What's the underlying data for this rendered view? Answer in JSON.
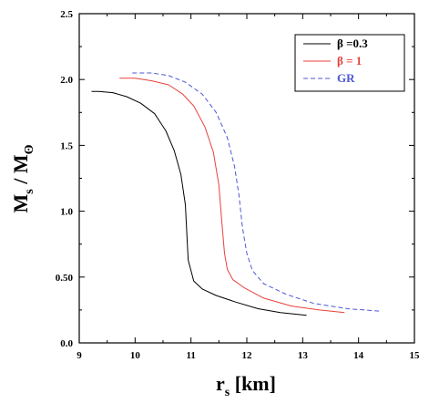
{
  "chart_data": {
    "type": "line",
    "xlabel_main": "r",
    "xlabel_sub": "s",
    "xlabel_unit": " [km]",
    "ylabel_main": "M",
    "ylabel_sub": "s",
    "ylabel_sep": " / M",
    "ylabel_sub2": "ʘ",
    "xlim": [
      9,
      15
    ],
    "ylim": [
      0,
      2.5
    ],
    "xticks": [
      9,
      10,
      11,
      12,
      13,
      14,
      15
    ],
    "xtick_labels": [
      "9",
      "10",
      "11",
      "12",
      "13",
      "14",
      "15"
    ],
    "yticks": [
      0,
      0.5,
      1.0,
      1.5,
      2.0,
      2.5
    ],
    "ytick_labels": [
      "0.0",
      "0.50",
      "1.0",
      "1.5",
      "2.0",
      "2.5"
    ],
    "legend_position": "top-right",
    "series": [
      {
        "name": "β =0.3",
        "color": "#000000",
        "dash": "solid",
        "x": [
          9.22,
          9.35,
          9.6,
          9.85,
          10.1,
          10.35,
          10.55,
          10.7,
          10.82,
          10.9,
          10.95,
          11.05,
          11.2,
          11.45,
          11.8,
          12.2,
          12.6,
          13.07
        ],
        "y": [
          1.91,
          1.91,
          1.9,
          1.87,
          1.82,
          1.74,
          1.61,
          1.46,
          1.28,
          1.05,
          0.63,
          0.47,
          0.41,
          0.36,
          0.31,
          0.26,
          0.23,
          0.21
        ]
      },
      {
        "name": "β = 1",
        "color": "#e8413c",
        "dash": "solid",
        "x": [
          9.72,
          10.0,
          10.3,
          10.6,
          10.85,
          11.05,
          11.25,
          11.4,
          11.5,
          11.55,
          11.6,
          11.65,
          11.75,
          11.95,
          12.3,
          12.8,
          13.3,
          13.75
        ],
        "y": [
          2.01,
          2.01,
          1.99,
          1.96,
          1.89,
          1.8,
          1.64,
          1.45,
          1.2,
          0.93,
          0.68,
          0.56,
          0.48,
          0.42,
          0.34,
          0.28,
          0.25,
          0.23
        ]
      },
      {
        "name": "GR",
        "color": "#4d57d6",
        "dash": "dashed",
        "x": [
          9.95,
          10.3,
          10.6,
          10.9,
          11.2,
          11.45,
          11.65,
          11.78,
          11.86,
          11.92,
          12.0,
          12.1,
          12.3,
          12.7,
          13.2,
          13.8,
          14.4
        ],
        "y": [
          2.05,
          2.05,
          2.03,
          1.98,
          1.89,
          1.75,
          1.56,
          1.34,
          1.12,
          0.88,
          0.68,
          0.55,
          0.45,
          0.37,
          0.3,
          0.26,
          0.24
        ]
      }
    ]
  }
}
